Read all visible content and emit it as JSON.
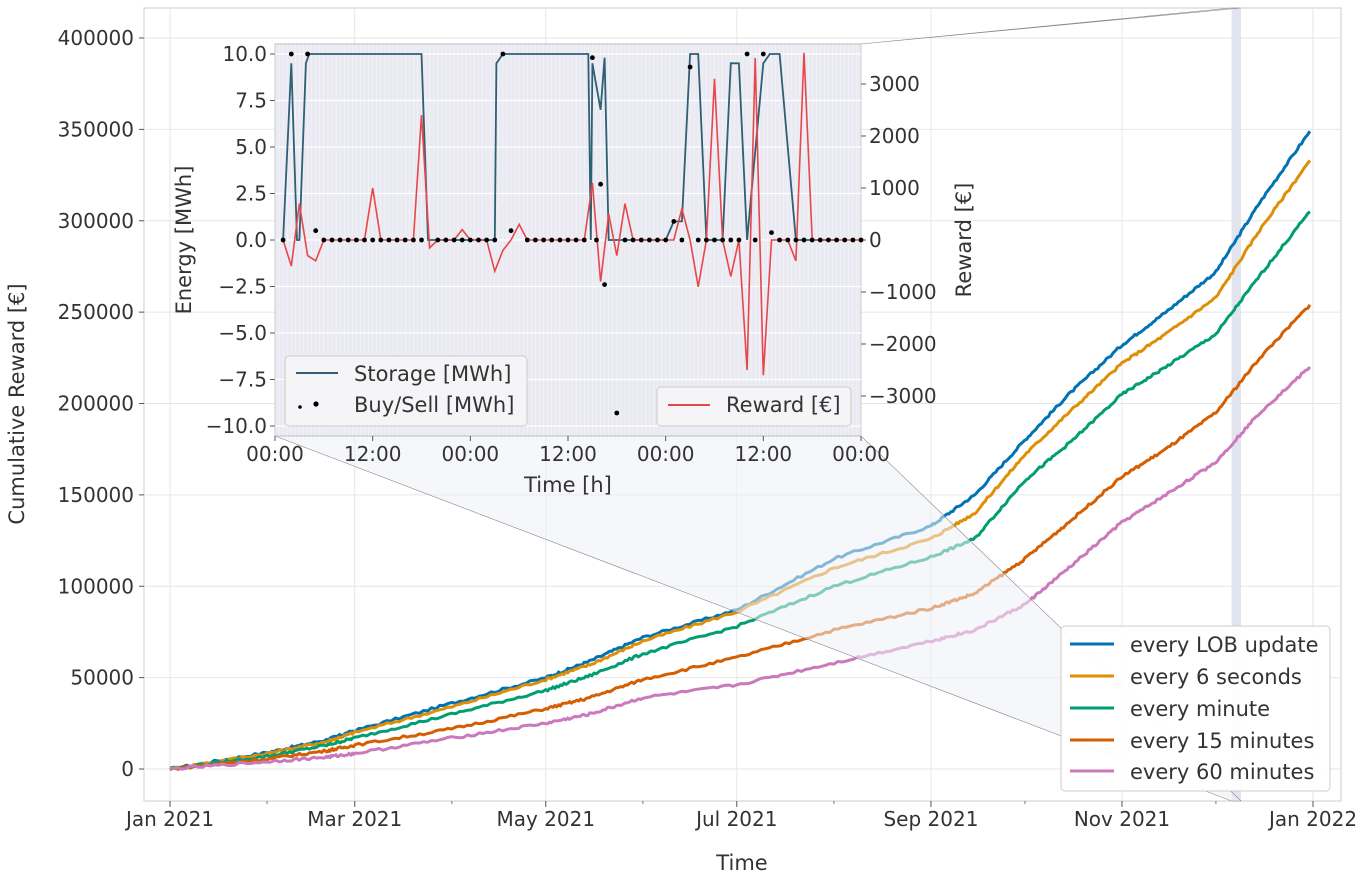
{
  "chart_data": [
    {
      "type": "line",
      "xlabel": "Time",
      "ylabel": "Cumulative Reward [€]",
      "xlim": [
        "2021-01-01",
        "2022-01-01"
      ],
      "ylim": [
        -17000,
        417000
      ],
      "x_ticks": [
        "2021-01-01",
        "2021-03-01",
        "2021-05-01",
        "2021-07-01",
        "2021-09-01",
        "2021-11-01",
        "2022-01-01"
      ],
      "x_tick_labels": [
        "Jan 2021",
        "Mar 2021",
        "May 2021",
        "Jul 2021",
        "Sep 2021",
        "Nov 2021",
        "Jan 2022"
      ],
      "y_ticks": [
        0,
        50000,
        100000,
        150000,
        200000,
        250000,
        300000,
        350000,
        400000
      ],
      "y_tick_labels": [
        "0",
        "50000",
        "100000",
        "150000",
        "200000",
        "250000",
        "300000",
        "350000",
        "400000"
      ],
      "grid": true,
      "legend_position": "lower-right",
      "highlight_span": [
        "2021-12-06",
        "2021-12-09"
      ],
      "series": [
        {
          "name": "every LOB update",
          "color": "#0173b2",
          "x": [
            "2021-01-01",
            "2021-02-01",
            "2021-02-20",
            "2021-03-01",
            "2021-04-01",
            "2021-05-01",
            "2021-05-15",
            "2021-06-01",
            "2021-07-01",
            "2021-08-01",
            "2021-09-01",
            "2021-09-15",
            "2021-10-01",
            "2021-10-15",
            "2021-11-01",
            "2021-11-15",
            "2021-12-01",
            "2021-12-15",
            "2021-12-31"
          ],
          "values": [
            0,
            9000,
            16000,
            21000,
            36000,
            50000,
            59000,
            72000,
            87000,
            115000,
            133000,
            150000,
            180000,
            205000,
            232000,
            250000,
            272000,
            310000,
            349000
          ]
        },
        {
          "name": "every 6 seconds",
          "color": "#de8f05",
          "x": [
            "2021-01-01",
            "2021-02-01",
            "2021-02-20",
            "2021-03-01",
            "2021-04-01",
            "2021-05-01",
            "2021-05-15",
            "2021-06-01",
            "2021-07-01",
            "2021-08-01",
            "2021-09-01",
            "2021-09-15",
            "2021-10-01",
            "2021-10-15",
            "2021-11-01",
            "2021-11-15",
            "2021-12-01",
            "2021-12-15",
            "2021-12-31"
          ],
          "values": [
            0,
            8500,
            15000,
            20000,
            34000,
            49000,
            57000,
            70000,
            86000,
            110000,
            126000,
            140000,
            172000,
            195000,
            222000,
            238000,
            258000,
            295000,
            333000
          ]
        },
        {
          "name": "every minute",
          "color": "#029e73",
          "x": [
            "2021-01-01",
            "2021-02-01",
            "2021-02-20",
            "2021-03-01",
            "2021-04-01",
            "2021-05-01",
            "2021-05-15",
            "2021-06-01",
            "2021-07-01",
            "2021-08-01",
            "2021-09-01",
            "2021-09-15",
            "2021-10-01",
            "2021-10-15",
            "2021-11-01",
            "2021-11-15",
            "2021-12-01",
            "2021-12-15",
            "2021-12-31"
          ],
          "values": [
            0,
            7000,
            13000,
            17000,
            30000,
            43000,
            51000,
            63000,
            78000,
            100000,
            116000,
            126000,
            158000,
            178000,
            205000,
            220000,
            238000,
            270000,
            305000
          ]
        },
        {
          "name": "every 15 minutes",
          "color": "#d55e00",
          "x": [
            "2021-01-01",
            "2021-02-01",
            "2021-02-20",
            "2021-03-01",
            "2021-04-01",
            "2021-05-01",
            "2021-05-15",
            "2021-06-01",
            "2021-07-01",
            "2021-08-01",
            "2021-09-01",
            "2021-09-15",
            "2021-10-01",
            "2021-10-15",
            "2021-11-01",
            "2021-11-15",
            "2021-12-01",
            "2021-12-15",
            "2021-12-31"
          ],
          "values": [
            0,
            5500,
            10000,
            13000,
            22000,
            33000,
            39000,
            49000,
            61000,
            76000,
            88000,
            96000,
            115000,
            135000,
            160000,
            175000,
            195000,
            225000,
            254000
          ]
        },
        {
          "name": "every 60 minutes",
          "color": "#cc78bc",
          "x": [
            "2021-01-01",
            "2021-02-01",
            "2021-02-20",
            "2021-03-01",
            "2021-04-01",
            "2021-05-01",
            "2021-05-15",
            "2021-06-01",
            "2021-07-01",
            "2021-08-01",
            "2021-09-01",
            "2021-09-15",
            "2021-10-01",
            "2021-10-15",
            "2021-11-01",
            "2021-11-15",
            "2021-12-01",
            "2021-12-15",
            "2021-12-31"
          ],
          "values": [
            0,
            4000,
            6500,
            8500,
            17000,
            25000,
            30000,
            39000,
            46000,
            58000,
            70000,
            76000,
            90000,
            110000,
            135000,
            150000,
            168000,
            195000,
            220000
          ]
        }
      ]
    },
    {
      "type": "line",
      "xlabel": "Time [h]",
      "ylabel": "Energy [MWh]",
      "y2label": "Reward [€]",
      "xlim": [
        0,
        72
      ],
      "ylim": [
        -10.5,
        10.5
      ],
      "y2lim": [
        -3700,
        3700
      ],
      "x_ticks": [
        0,
        12,
        24,
        36,
        48,
        60,
        72
      ],
      "x_tick_labels": [
        "00:00",
        "12:00",
        "00:00",
        "12:00",
        "00:00",
        "12:00",
        "00:00"
      ],
      "y_ticks": [
        -10,
        -7.5,
        -5,
        -2.5,
        0,
        2.5,
        5,
        7.5,
        10
      ],
      "y_tick_labels": [
        "−10.0",
        "−7.5",
        "−5.0",
        "−2.5",
        "0.0",
        "2.5",
        "5.0",
        "7.5",
        "10.0"
      ],
      "y2_ticks": [
        -3000,
        -2000,
        -1000,
        0,
        1000,
        2000,
        3000
      ],
      "y2_tick_labels": [
        "−3000",
        "−2000",
        "−1000",
        "0",
        "1000",
        "2000",
        "3000"
      ],
      "grid": true,
      "legend_position": "lower-left",
      "legend2_position": "lower-right",
      "series": [
        {
          "name": "Storage [MWh]",
          "color": "#2e5f74",
          "axis": "left",
          "x": [
            1,
            2,
            2.7,
            3,
            3.8,
            4.2,
            4.5,
            5,
            6,
            18,
            18.8,
            19,
            27,
            27.2,
            28,
            30,
            38.5,
            38.8,
            39,
            40,
            40.5,
            41,
            41.5,
            41.7,
            42,
            43.5,
            44,
            45,
            48,
            49,
            50,
            51,
            52,
            53,
            54,
            55,
            56,
            57,
            58,
            60,
            60.8,
            61,
            62,
            64,
            65,
            66,
            67,
            68.8
          ],
          "values": [
            0,
            9.5,
            0,
            0,
            9.5,
            10,
            10,
            10,
            10,
            10,
            0,
            0,
            0,
            9.5,
            10,
            10,
            10,
            0,
            9.5,
            7,
            9.8,
            0,
            0,
            0,
            0,
            0,
            0,
            0,
            0,
            1,
            1,
            10,
            10,
            0,
            0,
            0,
            9.5,
            9.5,
            0,
            9.5,
            10,
            10,
            10,
            0,
            0,
            0,
            0,
            0
          ]
        },
        {
          "name": "Buy/Sell [MWh]",
          "color": "#000000",
          "axis": "left",
          "style": "points",
          "x": [
            1,
            2,
            4,
            5,
            6,
            7,
            8,
            9,
            10,
            11,
            12,
            13,
            14,
            15,
            16,
            17,
            18,
            20,
            21,
            22,
            23,
            24,
            25,
            26,
            27,
            28,
            29,
            31,
            32,
            33,
            34,
            35,
            36,
            37,
            38,
            39,
            39.5,
            40,
            40.5,
            42,
            43,
            44,
            45,
            46,
            47,
            48,
            49,
            50,
            51,
            52,
            53,
            54,
            55,
            56,
            57,
            58,
            59,
            60,
            61,
            62,
            63,
            64,
            65,
            66,
            67,
            68,
            69,
            70,
            71,
            72
          ],
          "values": [
            0,
            10,
            10,
            0.5,
            0,
            0,
            0,
            0,
            0,
            0,
            0,
            0,
            0,
            0,
            0,
            0,
            0,
            0,
            0,
            0,
            0,
            0,
            0,
            0,
            0,
            10,
            0.5,
            0,
            0,
            0,
            0,
            0,
            0,
            0,
            0,
            9.8,
            0,
            3,
            -2.4,
            -9.3,
            0,
            0,
            0,
            0,
            0,
            0,
            1,
            0,
            9.3,
            0,
            0,
            0,
            0,
            0,
            0,
            10,
            0,
            10,
            0.4,
            0,
            0,
            0,
            0,
            0,
            0,
            0,
            0,
            0,
            0,
            0
          ]
        },
        {
          "name": "Reward [€]",
          "color": "#e8474a",
          "axis": "right",
          "x": [
            1,
            2,
            3,
            4,
            5,
            6,
            7,
            8,
            9,
            10,
            11,
            12,
            13,
            14,
            15,
            16,
            17,
            18,
            19,
            20,
            21,
            22,
            23,
            24,
            25,
            26,
            27,
            28,
            29,
            30,
            31,
            32,
            33,
            34,
            35,
            36,
            37,
            38,
            39,
            40,
            41,
            42,
            43,
            44,
            45,
            46,
            47,
            48,
            49,
            50,
            51,
            52,
            53,
            54,
            55,
            56,
            57,
            58,
            59,
            60,
            61,
            62,
            63,
            64,
            65,
            66,
            67,
            68,
            69,
            70,
            71,
            72
          ],
          "values": [
            0,
            -500,
            700,
            -300,
            -400,
            0,
            0,
            0,
            0,
            0,
            0,
            1000,
            0,
            0,
            0,
            0,
            0,
            2400,
            -150,
            0,
            0,
            0,
            200,
            0,
            0,
            0,
            -600,
            -200,
            0,
            300,
            0,
            0,
            0,
            0,
            0,
            0,
            0,
            0,
            1100,
            -800,
            500,
            -300,
            700,
            0,
            0,
            0,
            0,
            0,
            0,
            600,
            0,
            -900,
            0,
            3100,
            0,
            -700,
            0,
            -2500,
            3500,
            -2600,
            0,
            0,
            0,
            -400,
            3600,
            0,
            0,
            0,
            0,
            0,
            0,
            0
          ]
        }
      ]
    }
  ]
}
